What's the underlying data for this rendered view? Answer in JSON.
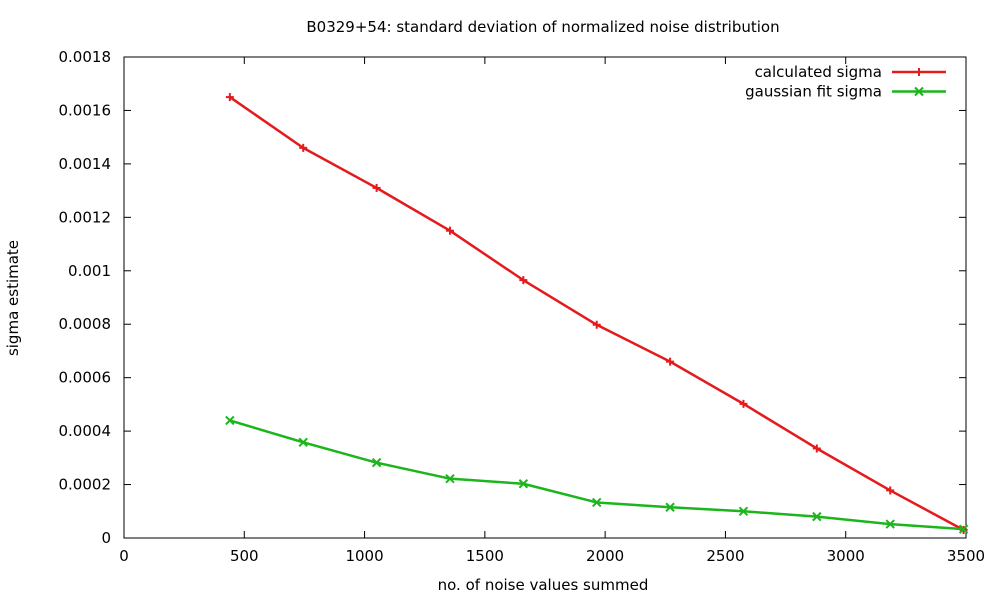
{
  "chart_data": {
    "type": "line",
    "title": "B0329+54: standard deviation  of normalized noise distribution",
    "xlabel": "no. of noise values summed",
    "ylabel": "sigma estimate",
    "xlim": [
      0,
      3500
    ],
    "ylim": [
      0,
      0.0018
    ],
    "xticks": [
      "0",
      "500",
      "1000",
      "1500",
      "2000",
      "2500",
      "3000",
      "3500"
    ],
    "yticks": [
      "0",
      "0.0002",
      "0.0004",
      "0.0006",
      "0.0008",
      "0.001",
      "0.0012",
      "0.0014",
      "0.0016",
      "0.0018"
    ],
    "grid": false,
    "legend_position": "top-right",
    "x": [
      440,
      745,
      1050,
      1355,
      1660,
      1965,
      2270,
      2575,
      2880,
      3185,
      3490
    ],
    "series": [
      {
        "name": "calculated sigma",
        "color": "#e41a1c",
        "marker": "plus",
        "values": [
          0.00165,
          0.00146,
          0.00131,
          0.00115,
          0.000965,
          0.000798,
          0.00066,
          0.000502,
          0.000335,
          0.000178,
          3e-05
        ]
      },
      {
        "name": "gaussian fit sigma",
        "color": "#1cb51c",
        "marker": "cross",
        "values": [
          0.00044,
          0.000358,
          0.000282,
          0.000222,
          0.000203,
          0.000133,
          0.000115,
          0.0001,
          8e-05,
          5.2e-05,
          3.3e-05
        ]
      }
    ]
  }
}
